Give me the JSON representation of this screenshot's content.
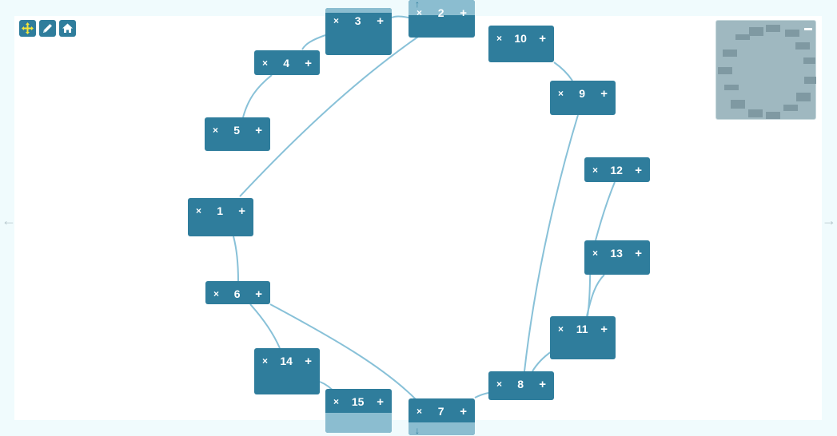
{
  "nodes": [
    {
      "id": "1",
      "label": "1"
    },
    {
      "id": "2",
      "label": "2"
    },
    {
      "id": "3",
      "label": "3"
    },
    {
      "id": "4",
      "label": "4"
    },
    {
      "id": "5",
      "label": "5"
    },
    {
      "id": "6",
      "label": "6"
    },
    {
      "id": "7",
      "label": "7"
    },
    {
      "id": "8",
      "label": "8"
    },
    {
      "id": "9",
      "label": "9"
    },
    {
      "id": "10",
      "label": "10"
    },
    {
      "id": "11",
      "label": "11"
    },
    {
      "id": "12",
      "label": "12"
    },
    {
      "id": "13",
      "label": "13"
    },
    {
      "id": "14",
      "label": "14"
    },
    {
      "id": "15",
      "label": "15"
    }
  ],
  "node_controls": {
    "delete_glyph": "×",
    "add_glyph": "+"
  },
  "edges": [
    [
      "1",
      "2"
    ],
    [
      "1",
      "6"
    ],
    [
      "2",
      "3"
    ],
    [
      "3",
      "4"
    ],
    [
      "4",
      "5"
    ],
    [
      "6",
      "14"
    ],
    [
      "6",
      "7"
    ],
    [
      "14",
      "15"
    ],
    [
      "7",
      "8"
    ],
    [
      "8",
      "9"
    ],
    [
      "8",
      "11"
    ],
    [
      "9",
      "10"
    ],
    [
      "11",
      "13"
    ],
    [
      "11",
      "12"
    ]
  ],
  "toolbar": {
    "tools": [
      "move-icon",
      "pencil-icon",
      "home-icon"
    ]
  },
  "minimap": {
    "collapse_glyph": "−"
  },
  "nav": {
    "left_glyph": "←",
    "right_glyph": "→",
    "up_glyph": "↑",
    "down_glyph": "↓"
  },
  "colors": {
    "node": "#2f7d9c",
    "node_light": "#8bbdd0",
    "edge": "#88c1d8",
    "accent": "#f2e53a"
  }
}
